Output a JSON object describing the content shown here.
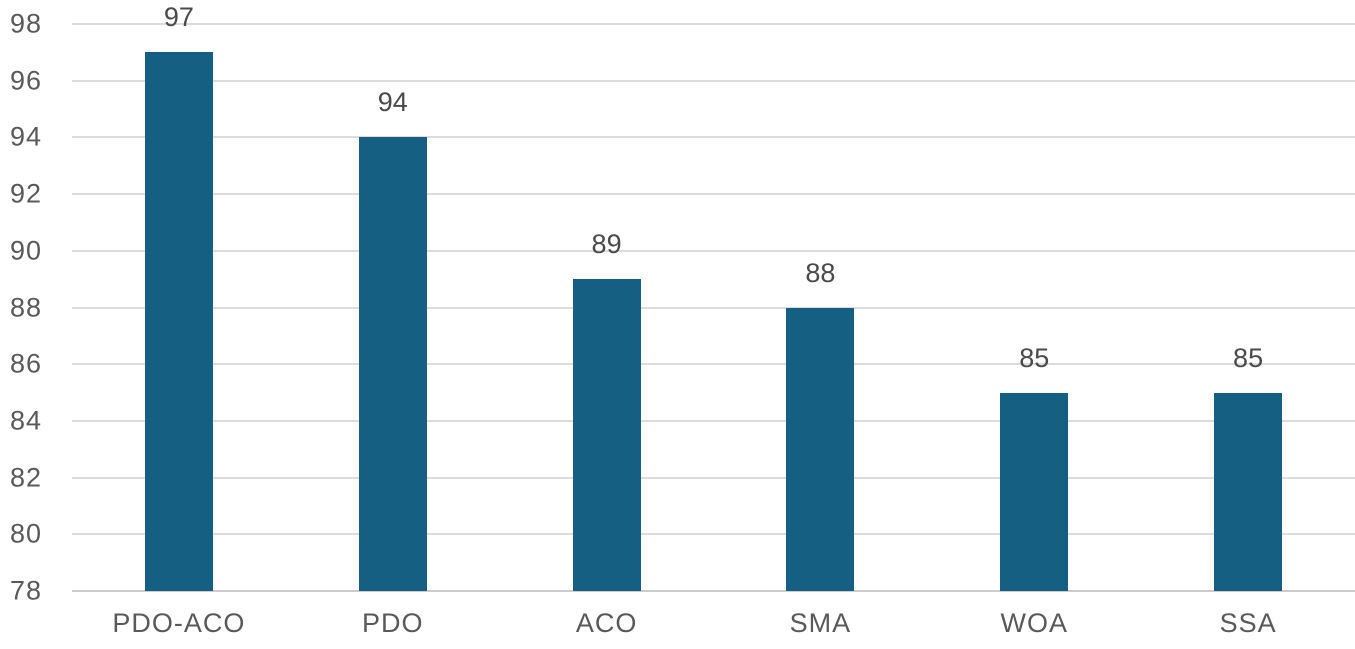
{
  "chart_data": {
    "type": "bar",
    "categories": [
      "PDO-ACO",
      "PDO",
      "ACO",
      "SMA",
      "WOA",
      "SSA"
    ],
    "values": [
      97,
      94,
      89,
      88,
      85,
      85
    ],
    "data_labels": [
      "97",
      "94",
      "89",
      "88",
      "85",
      "85"
    ],
    "title": "",
    "xlabel": "",
    "ylabel": "",
    "ylim": [
      78,
      98
    ],
    "ytick_step": 2,
    "ytick_labels": [
      "78",
      "80",
      "82",
      "84",
      "86",
      "88",
      "90",
      "92",
      "94",
      "96",
      "98"
    ],
    "grid": "horizontal",
    "legend": "none",
    "colors": {
      "bar": "#156082",
      "gridline": "#dcdcdc",
      "axis_line": "#cccccc",
      "tick_label": "#595959",
      "data_label": "#4a4a4a",
      "background": "#ffffff"
    }
  }
}
